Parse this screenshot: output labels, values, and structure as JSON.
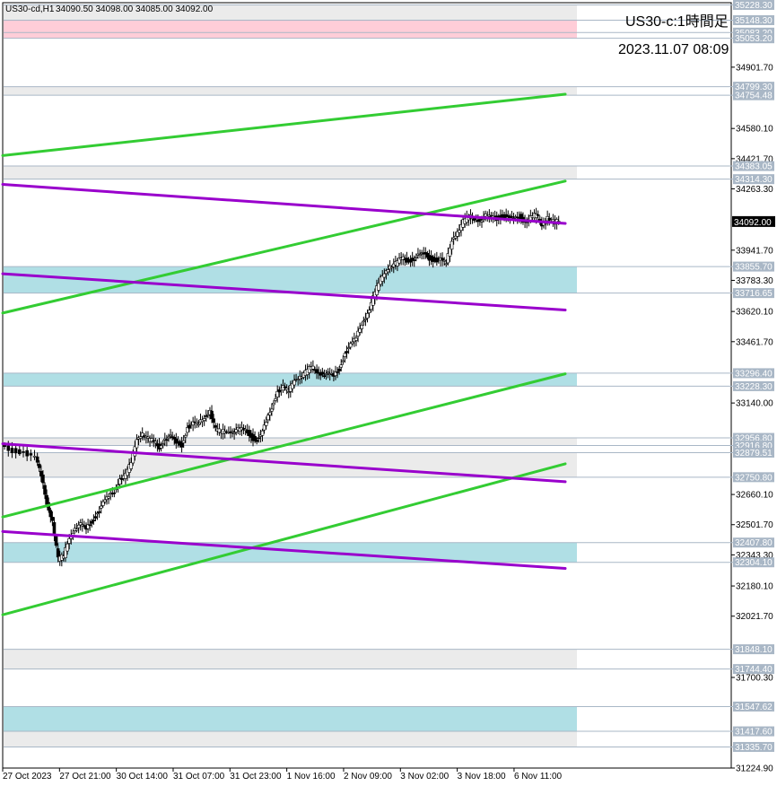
{
  "header": {
    "symbol": "US30-cd,H1",
    "ohlc": "34090.50 34098.00 34085.00 34092.00",
    "title": "US30-c:1時間足",
    "datetime": "2023.11.07 08:09"
  },
  "chart_data": {
    "type": "candlestick",
    "symbol": "US30-cd",
    "timeframe": "H1",
    "title": "US30-c:1時間足",
    "ylim": [
      31224.9,
      35240
    ],
    "xlim": [
      0,
      100
    ],
    "grid": false,
    "legend": "none",
    "price_ticks": [
      34901.7,
      34580.1,
      34421.7,
      34263.3,
      33941.7,
      33783.3,
      33620.1,
      33461.7,
      33140.0,
      32660.1,
      32501.7,
      32343.3,
      32180.1,
      32021.7,
      31700.3,
      31224.9
    ],
    "x_labels": [
      {
        "label": "27 Oct 2023",
        "x": 0
      },
      {
        "label": "27 Oct 21:00",
        "x": 10.1
      },
      {
        "label": "30 Oct 14:00",
        "x": 20.2
      },
      {
        "label": "31 Oct 07:00",
        "x": 30.3
      },
      {
        "label": "31 Oct 23:00",
        "x": 40.4
      },
      {
        "label": "1 Nov 16:00",
        "x": 50.5
      },
      {
        "label": "2 Nov 09:00",
        "x": 60.6
      },
      {
        "label": "3 Nov 02:00",
        "x": 70.7
      },
      {
        "label": "3 Nov 18:00",
        "x": 80.8
      },
      {
        "label": "6 Nov 11:00",
        "x": 90.9
      }
    ],
    "current_price": 34092.0,
    "zone_lines": [
      35228.3,
      35148.3,
      35083.2,
      35053.2,
      34799.3,
      34754.48,
      34383.05,
      34314.3,
      33855.7,
      33716.65,
      33296.4,
      33228.3,
      32956.8,
      32916.8,
      32879.51,
      32750.8,
      32407.8,
      32304.1,
      31848.1,
      31744.4,
      31547.62,
      31417.6,
      31335.7
    ],
    "zones": [
      {
        "top": 35228.3,
        "bottom": 35148.3,
        "color": "#ebebeb"
      },
      {
        "top": 35148.3,
        "bottom": 35083.2,
        "color": "#ffffff"
      },
      {
        "top": 35148.3,
        "bottom": 35053.2,
        "color": "#ffcdd8"
      },
      {
        "top": 34799.3,
        "bottom": 34754.48,
        "color": "#ebebeb"
      },
      {
        "top": 34383.05,
        "bottom": 34314.3,
        "color": "#ebebeb"
      },
      {
        "top": 33855.7,
        "bottom": 33716.65,
        "color": "#b0dfe5"
      },
      {
        "top": 33296.4,
        "bottom": 33228.3,
        "color": "#b0dfe5"
      },
      {
        "top": 32956.8,
        "bottom": 32916.8,
        "color": "#ebebeb"
      },
      {
        "top": 32879.51,
        "bottom": 32750.8,
        "color": "#ebebeb"
      },
      {
        "top": 32407.8,
        "bottom": 32304.1,
        "color": "#b0dfe5"
      },
      {
        "top": 31848.1,
        "bottom": 31744.4,
        "color": "#ebebeb"
      },
      {
        "top": 31547.62,
        "bottom": 31417.6,
        "color": "#b0dfe5"
      },
      {
        "top": 31417.6,
        "bottom": 31335.7,
        "color": "#ebebeb"
      }
    ],
    "trendlines": [
      {
        "color": "#33cc33",
        "x1": 0,
        "y1": 34438,
        "x2": 100,
        "y2": 34760
      },
      {
        "color": "#33cc33",
        "x1": 0,
        "y1": 33612,
        "x2": 100,
        "y2": 34304
      },
      {
        "color": "#33cc33",
        "x1": 0,
        "y1": 32542,
        "x2": 100,
        "y2": 33293
      },
      {
        "color": "#33cc33",
        "x1": 0,
        "y1": 32029,
        "x2": 100,
        "y2": 32821
      },
      {
        "color": "#9900cc",
        "x1": 0,
        "y1": 34287,
        "x2": 100,
        "y2": 34082
      },
      {
        "color": "#9900cc",
        "x1": 0,
        "y1": 33818,
        "x2": 100,
        "y2": 33628
      },
      {
        "color": "#9900cc",
        "x1": 0,
        "y1": 32926,
        "x2": 100,
        "y2": 32727
      },
      {
        "color": "#9900cc",
        "x1": 0,
        "y1": 32466,
        "x2": 100,
        "y2": 32272
      }
    ],
    "price_path": [
      [
        0,
        32910
      ],
      [
        2,
        32890
      ],
      [
        4,
        32880
      ],
      [
        6,
        32850
      ],
      [
        7,
        32760
      ],
      [
        8,
        32620
      ],
      [
        9,
        32520
      ],
      [
        10,
        32320
      ],
      [
        11,
        32340
      ],
      [
        12,
        32440
      ],
      [
        13,
        32480
      ],
      [
        14,
        32500
      ],
      [
        15,
        32480
      ],
      [
        16,
        32520
      ],
      [
        17,
        32560
      ],
      [
        18,
        32610
      ],
      [
        19,
        32650
      ],
      [
        20,
        32680
      ],
      [
        21,
        32740
      ],
      [
        22,
        32760
      ],
      [
        23,
        32830
      ],
      [
        24,
        32960
      ],
      [
        25,
        32980
      ],
      [
        26,
        32950
      ],
      [
        27,
        32940
      ],
      [
        28,
        32910
      ],
      [
        29,
        32950
      ],
      [
        30,
        32960
      ],
      [
        31,
        32930
      ],
      [
        32,
        32920
      ],
      [
        33,
        33010
      ],
      [
        34,
        33030
      ],
      [
        35,
        33030
      ],
      [
        36,
        33070
      ],
      [
        37,
        33100
      ],
      [
        38,
        33000
      ],
      [
        39,
        32990
      ],
      [
        40,
        33000
      ],
      [
        41,
        32990
      ],
      [
        42,
        33000
      ],
      [
        43,
        33000
      ],
      [
        44,
        32980
      ],
      [
        45,
        32940
      ],
      [
        46,
        32960
      ],
      [
        47,
        33040
      ],
      [
        48,
        33120
      ],
      [
        49,
        33200
      ],
      [
        50,
        33220
      ],
      [
        51,
        33200
      ],
      [
        52,
        33270
      ],
      [
        53,
        33280
      ],
      [
        54,
        33300
      ],
      [
        55,
        33330
      ],
      [
        56,
        33310
      ],
      [
        57,
        33290
      ],
      [
        58,
        33290
      ],
      [
        59,
        33280
      ],
      [
        60,
        33320
      ],
      [
        61,
        33400
      ],
      [
        62,
        33440
      ],
      [
        63,
        33480
      ],
      [
        64,
        33560
      ],
      [
        65,
        33610
      ],
      [
        66,
        33690
      ],
      [
        67,
        33770
      ],
      [
        68,
        33830
      ],
      [
        69,
        33860
      ],
      [
        70,
        33870
      ],
      [
        71,
        33900
      ],
      [
        72,
        33890
      ],
      [
        73,
        33890
      ],
      [
        74,
        33910
      ],
      [
        75,
        33920
      ],
      [
        76,
        33900
      ],
      [
        77,
        33890
      ],
      [
        78,
        33890
      ],
      [
        79,
        33870
      ],
      [
        80,
        34000
      ],
      [
        81,
        34040
      ],
      [
        82,
        34090
      ],
      [
        83,
        34120
      ],
      [
        84,
        34110
      ],
      [
        85,
        34100
      ],
      [
        86,
        34120
      ],
      [
        87,
        34110
      ],
      [
        88,
        34110
      ],
      [
        89,
        34120
      ],
      [
        90,
        34110
      ],
      [
        91,
        34100
      ],
      [
        92,
        34120
      ],
      [
        93,
        34090
      ],
      [
        94,
        34110
      ],
      [
        95,
        34130
      ],
      [
        96,
        34080
      ],
      [
        97,
        34120
      ],
      [
        98,
        34090
      ],
      [
        99,
        34092
      ]
    ]
  }
}
